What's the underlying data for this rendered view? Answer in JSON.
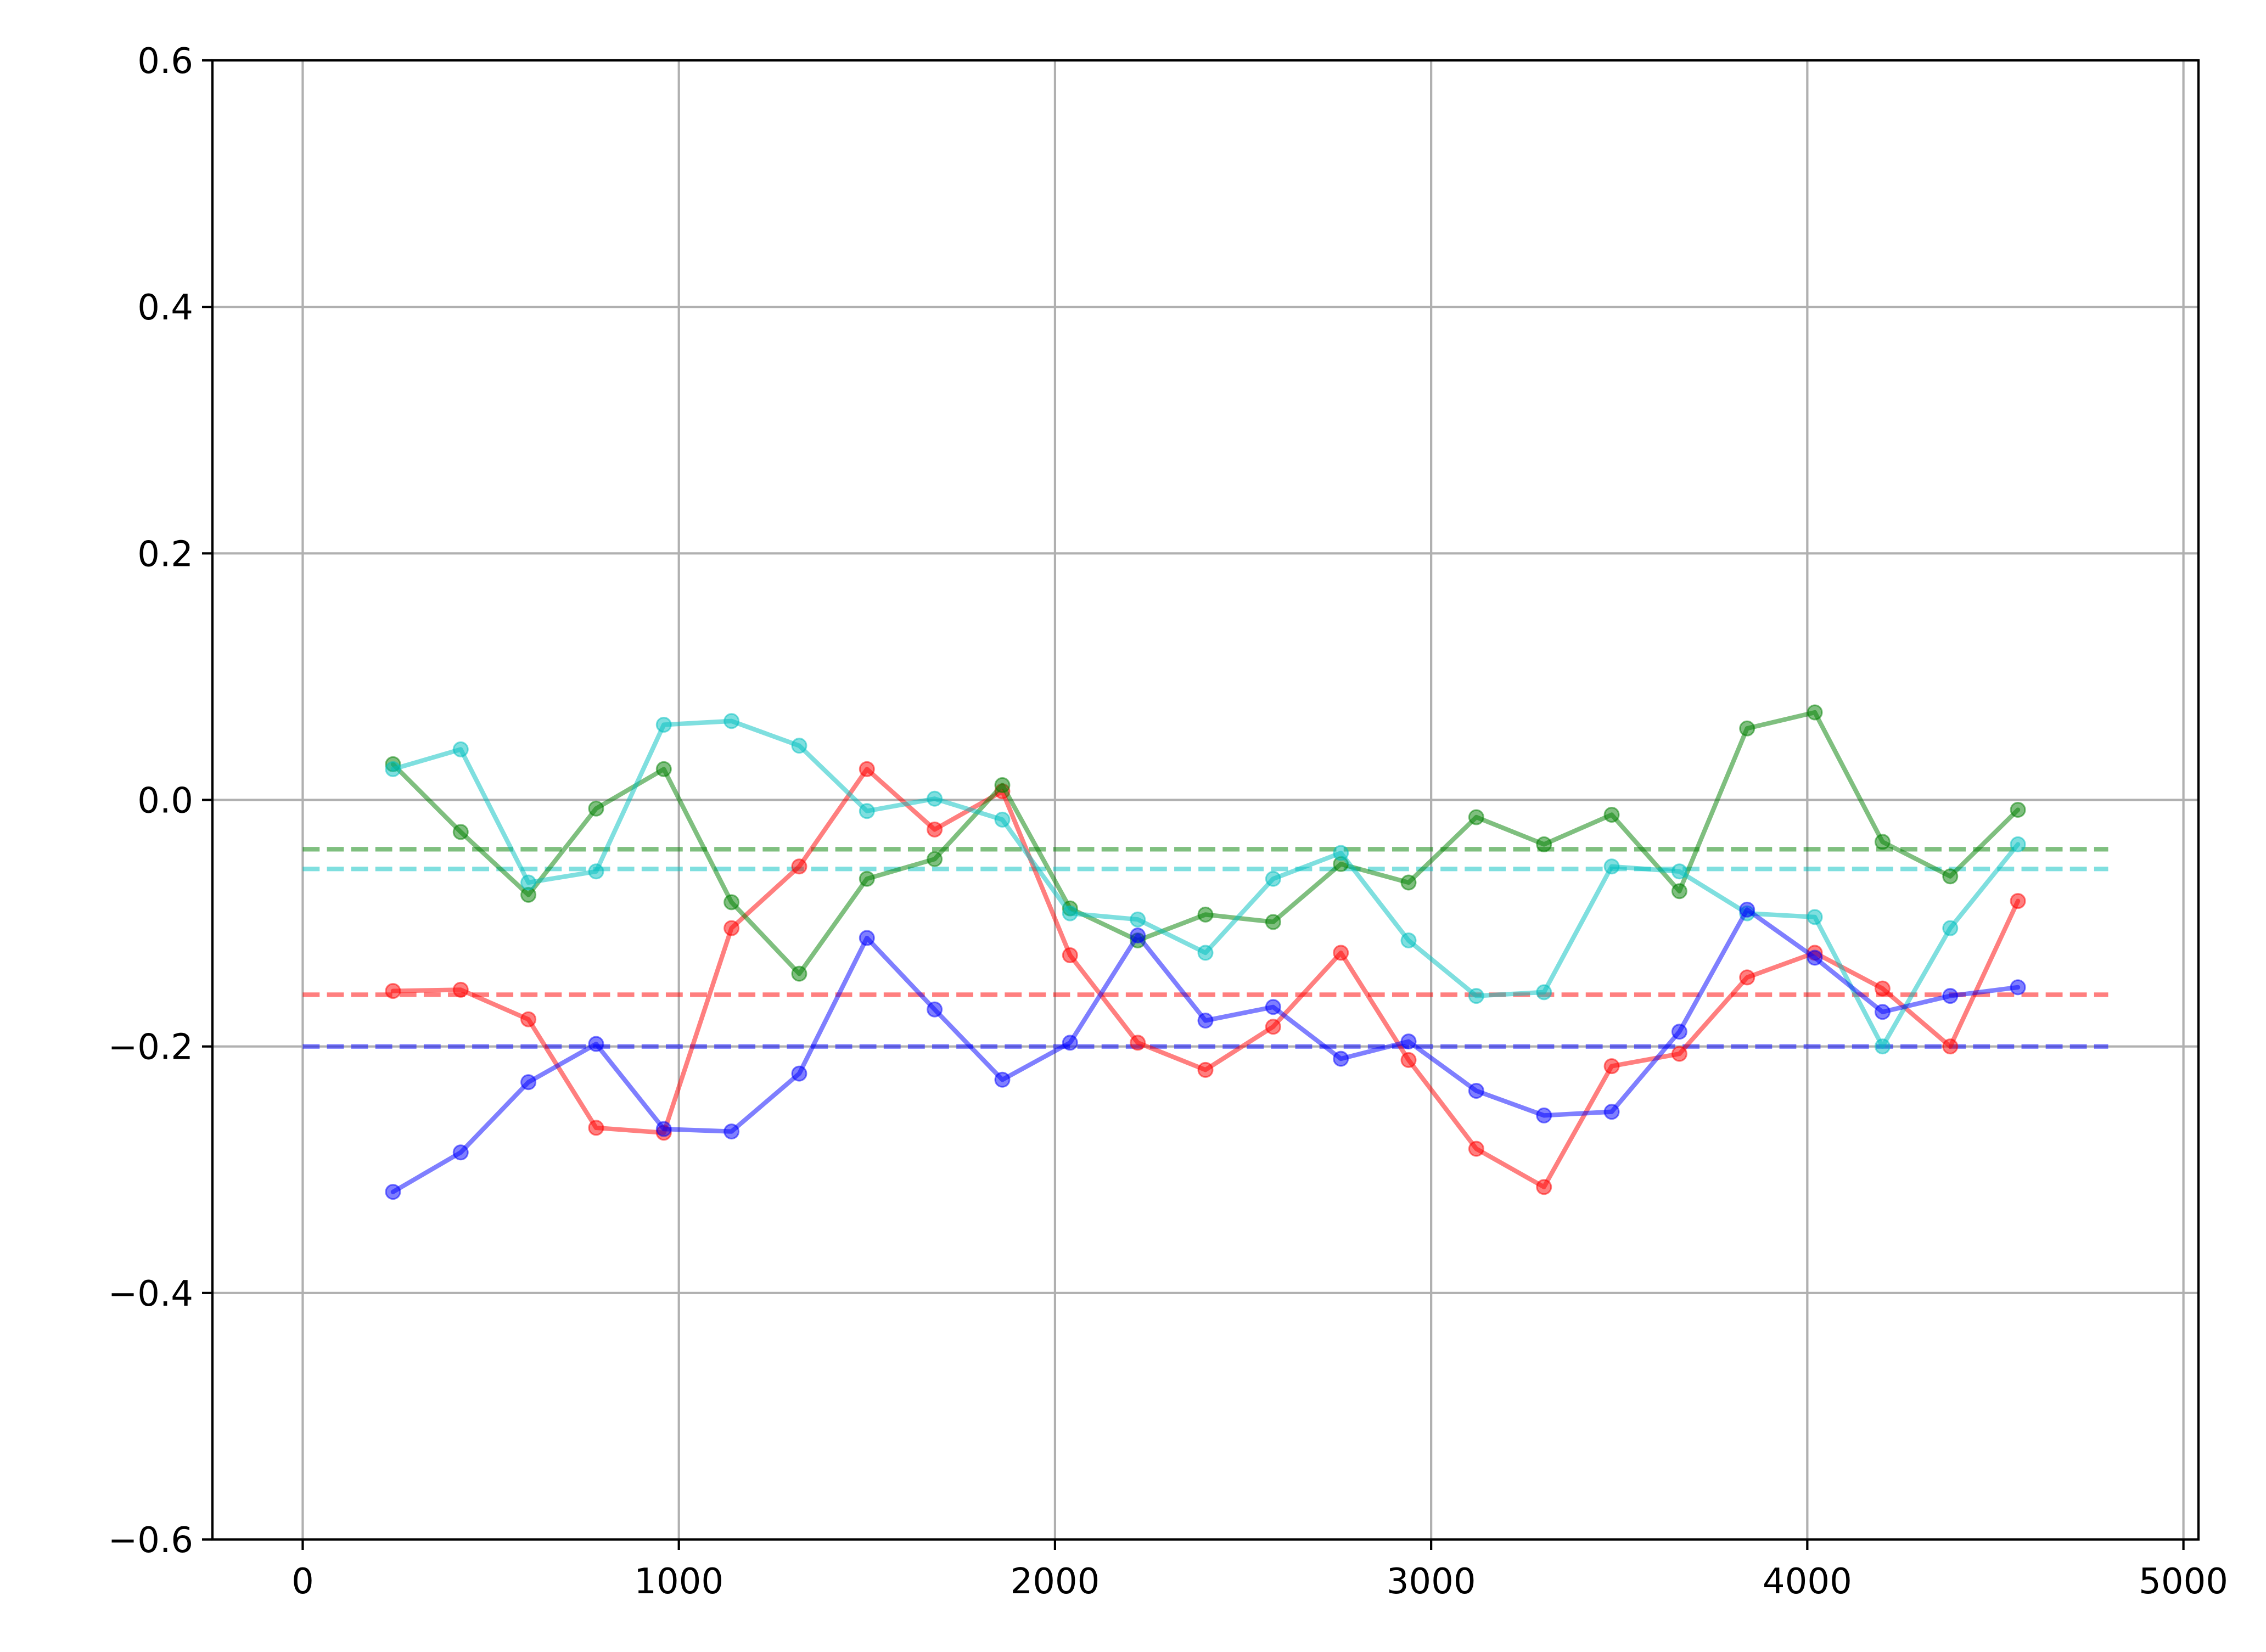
{
  "chart_data": {
    "type": "line",
    "title": "",
    "xlabel": "",
    "ylabel": "",
    "xlim": [
      -240,
      5040
    ],
    "ylim": [
      -0.6,
      0.6
    ],
    "grid": true,
    "legend": "none",
    "x_ticks": [
      0,
      1000,
      2000,
      3000,
      4000,
      5000
    ],
    "x_tick_labels": [
      "0",
      "1000",
      "2000",
      "3000",
      "4000",
      "5000"
    ],
    "y_ticks": [
      -0.6,
      -0.4,
      -0.2,
      0.0,
      0.2,
      0.4,
      0.6
    ],
    "y_tick_labels": [
      "−0.6",
      "−0.4",
      "−0.2",
      "0.0",
      "0.2",
      "0.4",
      "0.6"
    ],
    "x": [
      240,
      420,
      600,
      780,
      960,
      1140,
      1320,
      1500,
      1680,
      1860,
      2040,
      2220,
      2400,
      2580,
      2760,
      2940,
      3120,
      3300,
      3480,
      3660,
      3840,
      4020,
      4200,
      4380,
      4560
    ],
    "series": [
      {
        "color": "#ff0000",
        "values": [
          -0.155,
          -0.154,
          -0.178,
          -0.266,
          -0.27,
          -0.104,
          -0.054,
          0.025,
          -0.024,
          0.007,
          -0.126,
          -0.197,
          -0.219,
          -0.184,
          -0.124,
          -0.211,
          -0.283,
          -0.314,
          -0.216,
          -0.206,
          -0.144,
          -0.124,
          -0.153,
          -0.2,
          -0.082
        ],
        "mean": -0.158
      },
      {
        "color": "#008000",
        "values": [
          0.029,
          -0.026,
          -0.077,
          -0.007,
          0.025,
          -0.083,
          -0.141,
          -0.064,
          -0.048,
          0.012,
          -0.088,
          -0.114,
          -0.093,
          -0.099,
          -0.052,
          -0.067,
          -0.014,
          -0.036,
          -0.012,
          -0.074,
          0.058,
          0.071,
          -0.034,
          -0.062,
          -0.008
        ],
        "mean": -0.04
      },
      {
        "color": "#00bfbf",
        "values": [
          0.025,
          0.041,
          -0.067,
          -0.058,
          0.061,
          0.064,
          0.044,
          -0.009,
          0.001,
          -0.016,
          -0.092,
          -0.097,
          -0.124,
          -0.064,
          -0.043,
          -0.114,
          -0.159,
          -0.156,
          -0.054,
          -0.058,
          -0.092,
          -0.095,
          -0.2,
          -0.104,
          -0.036
        ],
        "mean": -0.056
      },
      {
        "color": "#0000ff",
        "values": [
          -0.318,
          -0.286,
          -0.229,
          -0.198,
          -0.267,
          -0.269,
          -0.222,
          -0.112,
          -0.17,
          -0.227,
          -0.197,
          -0.11,
          -0.179,
          -0.168,
          -0.21,
          -0.196,
          -0.236,
          -0.256,
          -0.253,
          -0.188,
          -0.089,
          -0.128,
          -0.172,
          -0.159,
          -0.152
        ],
        "mean": -0.2
      }
    ],
    "mean_line_x_range": [
      0,
      4800
    ]
  }
}
